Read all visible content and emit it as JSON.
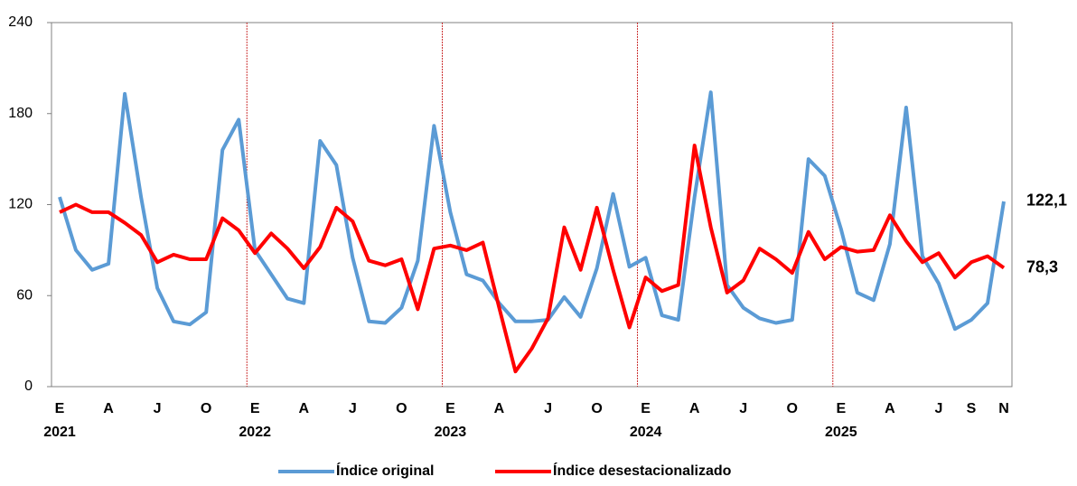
{
  "chart_data": {
    "type": "line",
    "categories": [
      "E",
      null,
      null,
      "A",
      null,
      null,
      "J",
      null,
      null,
      "O",
      null,
      null,
      "E",
      null,
      null,
      "A",
      null,
      null,
      "J",
      null,
      null,
      "O",
      null,
      null,
      "E",
      null,
      null,
      "A",
      null,
      null,
      "J",
      null,
      null,
      "O",
      null,
      null,
      "E",
      null,
      null,
      "A",
      null,
      null,
      "J",
      null,
      null,
      "O",
      null,
      null,
      "E",
      null,
      null,
      "A",
      null,
      null,
      "J",
      null,
      "S",
      null,
      "N"
    ],
    "year_labels": [
      "2021",
      null,
      null,
      null,
      null,
      null,
      null,
      null,
      null,
      null,
      null,
      null,
      "2022",
      null,
      null,
      null,
      null,
      null,
      null,
      null,
      null,
      null,
      null,
      null,
      "2023",
      null,
      null,
      null,
      null,
      null,
      null,
      null,
      null,
      null,
      null,
      null,
      "2024",
      null,
      null,
      null,
      null,
      null,
      null,
      null,
      null,
      null,
      null,
      null,
      "2025",
      null,
      null,
      null,
      null,
      null,
      null,
      null,
      null,
      null,
      null
    ],
    "series": [
      {
        "name": "Índice original",
        "color": "#5b9bd5",
        "label_color": "#1f3864",
        "values": [
          125,
          90,
          77,
          81,
          193,
          125,
          65,
          43,
          41,
          49,
          156,
          176,
          90,
          74,
          58,
          55,
          162,
          146,
          85,
          43,
          42,
          52,
          83,
          172,
          115,
          74,
          70,
          55,
          43,
          43,
          44,
          59,
          46,
          78,
          127,
          79,
          85,
          47,
          44,
          125,
          194,
          67,
          52,
          45,
          42,
          44,
          150,
          139,
          104,
          62,
          57,
          94,
          184,
          86,
          68,
          38,
          44,
          55,
          122.1
        ],
        "value_labels": [
          null,
          null,
          null,
          null,
          null,
          null,
          null,
          null,
          null,
          null,
          null,
          null,
          null,
          null,
          null,
          null,
          null,
          null,
          null,
          null,
          null,
          null,
          null,
          null,
          null,
          null,
          null,
          null,
          null,
          null,
          null,
          null,
          null,
          null,
          null,
          null,
          null,
          null,
          null,
          null,
          null,
          null,
          null,
          null,
          null,
          null,
          null,
          null,
          null,
          null,
          null,
          null,
          null,
          null,
          null,
          null,
          null,
          null,
          "122,1"
        ]
      },
      {
        "name": "Índice desestacionalizado",
        "color": "#ff0000",
        "label_color": "#c00000",
        "values": [
          115,
          120,
          115,
          115,
          108,
          100,
          82,
          87,
          84,
          84,
          111,
          103,
          88,
          101,
          91,
          78,
          92,
          118,
          109,
          83,
          80,
          84,
          51,
          91,
          93,
          90,
          95,
          52,
          10,
          25,
          45,
          105,
          77,
          118,
          77,
          39,
          72,
          63,
          67,
          159,
          105,
          62,
          70,
          91,
          84,
          75,
          102,
          84,
          92,
          89,
          90,
          113,
          96,
          82,
          88,
          72,
          82,
          86,
          78.3
        ],
        "value_labels": [
          null,
          null,
          null,
          null,
          null,
          null,
          null,
          null,
          null,
          null,
          null,
          null,
          null,
          null,
          null,
          null,
          null,
          null,
          null,
          null,
          null,
          null,
          null,
          null,
          null,
          null,
          null,
          null,
          null,
          null,
          null,
          null,
          null,
          null,
          null,
          null,
          null,
          null,
          null,
          null,
          null,
          null,
          null,
          null,
          null,
          null,
          null,
          null,
          null,
          null,
          null,
          null,
          null,
          null,
          null,
          null,
          null,
          null,
          "78,3"
        ]
      }
    ],
    "ylim": [
      0,
      240
    ],
    "yticks": [
      0,
      60,
      120,
      180,
      240
    ],
    "grid": false
  }
}
